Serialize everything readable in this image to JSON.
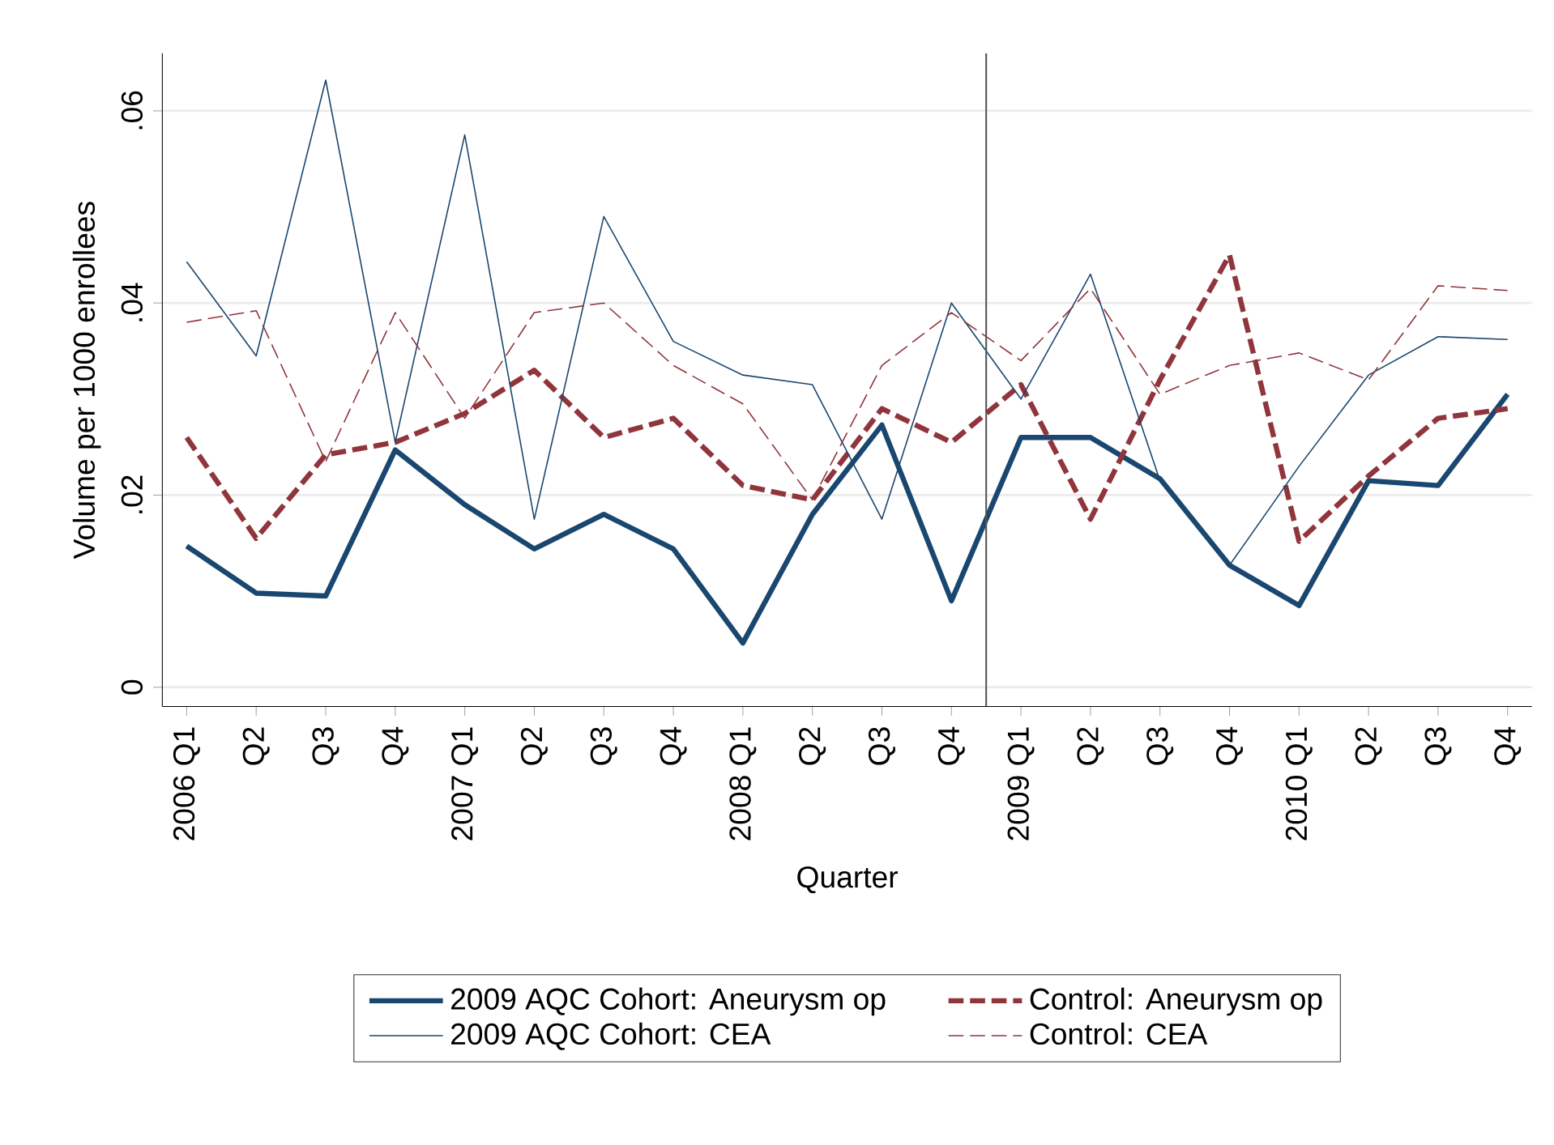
{
  "chart_data": {
    "type": "line",
    "xlabel": "Quarter",
    "ylabel": "Volume per 1000 enrollees",
    "categories": [
      "2006 Q1",
      "Q2",
      "Q3",
      "Q4",
      "2007 Q1",
      "Q2",
      "Q3",
      "Q4",
      "2008 Q1",
      "Q2",
      "Q3",
      "Q4",
      "2009 Q1",
      "Q2",
      "Q3",
      "Q4",
      "2010 Q1",
      "Q2",
      "Q3",
      "Q4"
    ],
    "series": [
      {
        "name": "2009 AQC Cohort: Aneurysm op",
        "color": "#1a476f",
        "line_style": "solid",
        "values": [
          0.0147,
          0.0098,
          0.0095,
          0.0247,
          0.019,
          0.0144,
          0.018,
          0.0144,
          0.0046,
          0.018,
          0.0273,
          0.009,
          0.026,
          0.026,
          0.0217,
          0.0127,
          0.0085,
          0.0215,
          0.021,
          0.0305
        ]
      },
      {
        "name": "Control: Aneurysm op",
        "color": "#90353b",
        "line_style": "dashed",
        "values": [
          0.026,
          0.0155,
          0.0242,
          0.0255,
          0.0285,
          0.033,
          0.026,
          0.028,
          0.021,
          0.0195,
          0.029,
          0.0255,
          0.0315,
          0.0175,
          0.032,
          0.045,
          0.0152,
          0.022,
          0.028,
          0.029
        ]
      },
      {
        "name": "2009 AQC Cohort: CEA",
        "color": "#1a476f",
        "line_style": "solid",
        "values": [
          0.0443,
          0.0345,
          0.0632,
          0.0255,
          0.0575,
          0.0175,
          0.049,
          0.036,
          0.0325,
          0.0315,
          0.0175,
          0.04,
          0.03,
          0.043,
          0.0215,
          0.0127,
          0.023,
          0.0325,
          0.0365,
          0.0362
        ]
      },
      {
        "name": "Control: CEA",
        "color": "#90353b",
        "line_style": "dashed",
        "values": [
          0.038,
          0.0392,
          0.0235,
          0.039,
          0.028,
          0.039,
          0.04,
          0.0335,
          0.0295,
          0.0195,
          0.0335,
          0.039,
          0.034,
          0.0415,
          0.0305,
          0.0335,
          0.0348,
          0.032,
          0.0418,
          0.0413
        ]
      }
    ],
    "ylim": [
      -0.002,
      0.066
    ],
    "yticks": [
      {
        "value": 0,
        "label": "0"
      },
      {
        "value": 0.02,
        "label": ".02"
      },
      {
        "value": 0.04,
        "label": ".04"
      },
      {
        "value": 0.06,
        "label": ".06"
      }
    ],
    "ref_lines": [
      {
        "axis": "x",
        "value": "2009 Q1",
        "color": "#555555"
      }
    ],
    "grid": "y",
    "legend": "bottom",
    "marker": "none"
  }
}
